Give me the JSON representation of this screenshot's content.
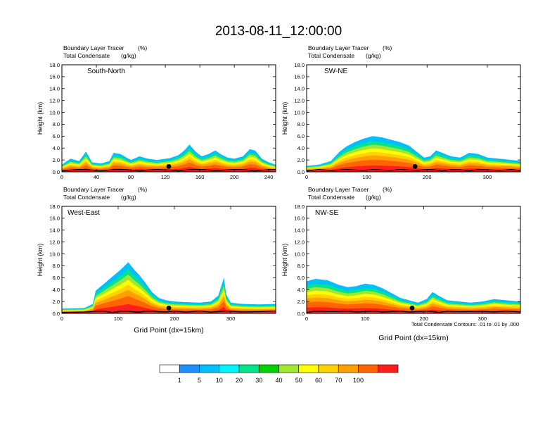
{
  "figure": {
    "title": "2013-08-11_12:00:00",
    "contour_note": "Total Condensate Contours: .01 to .01 by .000"
  },
  "colorbar": {
    "colors": [
      "#ffffff",
      "#1e90ff",
      "#00bfff",
      "#00f5ff",
      "#00e58c",
      "#00d200",
      "#a0e632",
      "#ffff00",
      "#ffd200",
      "#ffa000",
      "#ff6400",
      "#ff1e1e"
    ],
    "labels": [
      "1",
      "5",
      "10",
      "20",
      "30",
      "40",
      "50",
      "60",
      "70",
      "100"
    ]
  },
  "chart_data": [
    {
      "type": "heatmap",
      "panel": "South-North",
      "title_left_1": "Boundary Layer Tracer",
      "title_right_1": "(%)",
      "title_left_2": "Total Condensate",
      "title_right_2": "(g/kg)",
      "xlabel": "",
      "ylabel": "Height (km)",
      "xlim": [
        0,
        248
      ],
      "ylim": [
        0,
        18
      ],
      "xticks": [
        0,
        40,
        80,
        120,
        160,
        200,
        240
      ],
      "yticks": [
        0.0,
        2.0,
        4.0,
        6.0,
        8.0,
        10.0,
        12.0,
        14.0,
        16.0,
        18.0
      ],
      "ytick_labels": [
        "0.0",
        "2.0",
        "4.0",
        "6.0",
        "8.0",
        "10.0",
        "12.0",
        "14.0",
        "16.0",
        "18.0"
      ],
      "marker_x": 124,
      "pbl_top": [
        [
          0,
          1.2
        ],
        [
          10,
          2.2
        ],
        [
          20,
          1.8
        ],
        [
          28,
          3.4
        ],
        [
          35,
          1.6
        ],
        [
          45,
          1.4
        ],
        [
          55,
          1.8
        ],
        [
          60,
          3.2
        ],
        [
          68,
          3.0
        ],
        [
          75,
          2.4
        ],
        [
          80,
          2.0
        ],
        [
          90,
          2.6
        ],
        [
          100,
          2.2
        ],
        [
          110,
          2.0
        ],
        [
          125,
          2.3
        ],
        [
          135,
          2.8
        ],
        [
          142,
          3.6
        ],
        [
          148,
          4.6
        ],
        [
          155,
          3.4
        ],
        [
          162,
          2.6
        ],
        [
          170,
          3.0
        ],
        [
          178,
          3.6
        ],
        [
          184,
          3.0
        ],
        [
          192,
          2.4
        ],
        [
          200,
          2.2
        ],
        [
          210,
          2.6
        ],
        [
          218,
          3.8
        ],
        [
          224,
          3.6
        ],
        [
          232,
          2.2
        ],
        [
          240,
          1.6
        ],
        [
          248,
          1.2
        ]
      ]
    },
    {
      "type": "heatmap",
      "panel": "SW-NE",
      "title_left_1": "Boundary Layer Tracer",
      "title_right_1": "(%)",
      "title_left_2": "Total Condensate",
      "title_right_2": "(g/kg)",
      "xlabel": "",
      "ylabel": "Height (km)",
      "xlim": [
        0,
        355
      ],
      "ylim": [
        0,
        18
      ],
      "xticks": [
        0,
        100,
        200,
        300
      ],
      "yticks": [
        0.0,
        2.0,
        4.0,
        6.0,
        8.0,
        10.0,
        12.0,
        14.0,
        16.0,
        18.0
      ],
      "ytick_labels": [
        "0.0",
        "2.0",
        "4.0",
        "6.0",
        "8.0",
        "10.0",
        "12.0",
        "14.0",
        "16.0",
        "18.0"
      ],
      "marker_x": 180,
      "pbl_top": [
        [
          0,
          1.0
        ],
        [
          20,
          1.2
        ],
        [
          40,
          1.8
        ],
        [
          55,
          3.4
        ],
        [
          65,
          4.2
        ],
        [
          80,
          5.0
        ],
        [
          95,
          5.6
        ],
        [
          110,
          6.0
        ],
        [
          125,
          5.8
        ],
        [
          140,
          5.4
        ],
        [
          155,
          5.0
        ],
        [
          170,
          4.4
        ],
        [
          185,
          3.2
        ],
        [
          195,
          2.4
        ],
        [
          205,
          2.6
        ],
        [
          215,
          3.6
        ],
        [
          225,
          3.2
        ],
        [
          240,
          2.6
        ],
        [
          255,
          2.4
        ],
        [
          270,
          3.2
        ],
        [
          285,
          3.0
        ],
        [
          300,
          2.4
        ],
        [
          320,
          2.2
        ],
        [
          340,
          2.0
        ],
        [
          355,
          1.8
        ]
      ]
    },
    {
      "type": "heatmap",
      "panel": "West-East",
      "title_left_1": "Boundary Layer Tracer",
      "title_right_1": "(%)",
      "title_left_2": "Total Condensate",
      "title_right_2": "(g/kg)",
      "xlabel": "Grid Point (dx=15km)",
      "ylabel": "Height (km)",
      "xlim": [
        0,
        380
      ],
      "ylim": [
        0,
        18
      ],
      "xticks": [
        0,
        100,
        200,
        300
      ],
      "yticks": [
        0.0,
        2.0,
        4.0,
        6.0,
        8.0,
        10.0,
        12.0,
        14.0,
        16.0,
        18.0
      ],
      "ytick_labels": [
        "0.0",
        "2.0",
        "4.0",
        "6.0",
        "8.0",
        "10.0",
        "12.0",
        "14.0",
        "16.0",
        "18.0"
      ],
      "marker_x": 190,
      "pbl_top": [
        [
          0,
          0.8
        ],
        [
          40,
          0.9
        ],
        [
          55,
          1.6
        ],
        [
          60,
          3.8
        ],
        [
          75,
          5.0
        ],
        [
          90,
          6.2
        ],
        [
          105,
          7.4
        ],
        [
          118,
          8.6
        ],
        [
          128,
          7.4
        ],
        [
          138,
          6.4
        ],
        [
          148,
          5.2
        ],
        [
          160,
          3.6
        ],
        [
          172,
          2.6
        ],
        [
          185,
          2.2
        ],
        [
          200,
          2.0
        ],
        [
          220,
          1.9
        ],
        [
          245,
          1.8
        ],
        [
          265,
          2.0
        ],
        [
          278,
          3.0
        ],
        [
          288,
          6.0
        ],
        [
          292,
          3.2
        ],
        [
          300,
          1.8
        ],
        [
          320,
          1.6
        ],
        [
          350,
          1.5
        ],
        [
          380,
          1.6
        ]
      ]
    },
    {
      "type": "heatmap",
      "panel": "NW-SE",
      "title_left_1": "Boundary Layer Tracer",
      "title_right_1": "(%)",
      "title_left_2": "Total Condensate",
      "title_right_2": "(g/kg)",
      "xlabel": "Grid Point (dx=15km)",
      "ylabel": "Height (km)",
      "xlim": [
        0,
        365
      ],
      "ylim": [
        0,
        18
      ],
      "xticks": [
        0,
        100,
        200,
        300
      ],
      "yticks": [
        0.0,
        2.0,
        4.0,
        6.0,
        8.0,
        10.0,
        12.0,
        14.0,
        16.0,
        18.0
      ],
      "ytick_labels": [
        "0.0",
        "2.0",
        "4.0",
        "6.0",
        "8.0",
        "10.0",
        "12.0",
        "14.0",
        "16.0",
        "18.0"
      ],
      "marker_x": 180,
      "pbl_top": [
        [
          0,
          5.4
        ],
        [
          15,
          5.8
        ],
        [
          35,
          5.6
        ],
        [
          55,
          4.8
        ],
        [
          70,
          4.4
        ],
        [
          85,
          4.6
        ],
        [
          100,
          5.0
        ],
        [
          115,
          4.8
        ],
        [
          130,
          4.2
        ],
        [
          145,
          3.4
        ],
        [
          160,
          2.6
        ],
        [
          175,
          2.2
        ],
        [
          190,
          1.8
        ],
        [
          205,
          2.4
        ],
        [
          215,
          3.6
        ],
        [
          225,
          3.0
        ],
        [
          240,
          2.2
        ],
        [
          260,
          2.0
        ],
        [
          280,
          1.8
        ],
        [
          300,
          2.0
        ],
        [
          320,
          2.4
        ],
        [
          340,
          2.2
        ],
        [
          365,
          2.0
        ]
      ]
    }
  ]
}
